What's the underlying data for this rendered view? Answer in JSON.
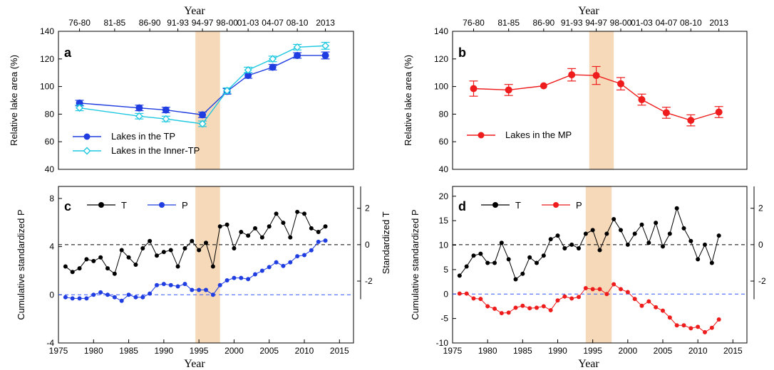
{
  "colors": {
    "tp": "#1f3de0",
    "inner_tp": "#1ec8e0",
    "mp": "#ee1c1c",
    "temp": "#000000",
    "precip_tp": "#1f3de0",
    "precip_mp": "#ee1c1c",
    "shade": "#f5d9b8",
    "zero_line_p": "#3355ff"
  },
  "top_axis_title": "Year",
  "bottom_axis_title": "Year",
  "period_labels": [
    "76-80",
    "81-85",
    "86-90",
    "91-93",
    "94-97",
    "98-00",
    "01-03",
    "04-07",
    "08-10",
    "2013"
  ],
  "chart_data": [
    {
      "panel": "a",
      "type": "line",
      "ylabel": "Relative lake area (%)",
      "xlabel": "Year",
      "ylim": [
        40,
        140
      ],
      "yticks": [
        "40",
        "60",
        "80",
        "100",
        "120",
        "140"
      ],
      "x_period_midpoints": [
        1978,
        1986.5,
        1990.3,
        1995.5,
        1999,
        2002,
        2005.5,
        2009,
        2013
      ],
      "shaded_range": [
        1994.5,
        1998
      ],
      "legend_position": "lower-left",
      "series": [
        {
          "name": "Lakes in the TP",
          "marker": "filled-circle",
          "color_key": "tp",
          "x": [
            1978,
            1986.5,
            1990.3,
            1995.5,
            1999,
            2002,
            2005.5,
            2009,
            2013
          ],
          "values": [
            88,
            84.5,
            83,
            79.5,
            96.5,
            108,
            114,
            122.5,
            122.5
          ],
          "err": [
            2,
            2,
            2,
            2,
            2,
            2,
            2,
            2,
            2.5
          ]
        },
        {
          "name": "Lakes in the Inner-TP",
          "marker": "open-diamond",
          "color_key": "inner_tp",
          "x": [
            1978,
            1986.5,
            1990.3,
            1995.5,
            1999,
            2002,
            2005.5,
            2009,
            2013
          ],
          "values": [
            84.5,
            78.5,
            76.5,
            73,
            97,
            112,
            120,
            128.5,
            129.5
          ],
          "err": [
            2,
            2,
            2,
            2,
            2,
            2,
            2,
            2,
            2.5
          ]
        }
      ]
    },
    {
      "panel": "b",
      "type": "line",
      "ylabel": "Relative lake area (%)",
      "xlabel": "Year",
      "ylim": [
        40,
        140
      ],
      "yticks": [
        "40",
        "60",
        "80",
        "100",
        "120",
        "140"
      ],
      "shaded_range": [
        1994.5,
        1998
      ],
      "legend_position": "lower-left",
      "series": [
        {
          "name": "Lakes in the MP",
          "marker": "filled-circle",
          "color_key": "mp",
          "x": [
            1978,
            1983,
            1988,
            1992,
            1995.5,
            1999,
            2002,
            2005.5,
            2009,
            2013
          ],
          "values": [
            98.5,
            97.5,
            100.5,
            108.5,
            108,
            102,
            90.5,
            81,
            75.5,
            81.5
          ],
          "err": [
            5.5,
            4,
            0,
            4.5,
            6.5,
            4.5,
            4,
            4,
            4,
            4
          ]
        }
      ]
    },
    {
      "panel": "c",
      "type": "line",
      "xlabel": "Year",
      "ylabel": "Cumulative standardized P",
      "y2label": "Standardized T",
      "xlim": [
        1975,
        2017
      ],
      "xticks": [
        "1975",
        "1980",
        "1985",
        "1990",
        "1995",
        "2000",
        "2005",
        "2010",
        "2015"
      ],
      "ylim": [
        -4,
        9
      ],
      "yticks": [
        "-4",
        "0",
        "4",
        "8"
      ],
      "y2lim": [
        -5.4,
        3.2
      ],
      "y2ticks": [
        "-2",
        "0",
        "2"
      ],
      "shaded_range": [
        1994.5,
        1998
      ],
      "legend_position": "top-left",
      "series": [
        {
          "name": "T",
          "axis": "right",
          "color_key": "temp",
          "x": [
            1976,
            1977,
            1978,
            1979,
            1980,
            1981,
            1982,
            1983,
            1984,
            1985,
            1986,
            1987,
            1988,
            1989,
            1990,
            1991,
            1992,
            1993,
            1994,
            1995,
            1996,
            1997,
            1998,
            1999,
            2000,
            2001,
            2002,
            2003,
            2004,
            2005,
            2006,
            2007,
            2008,
            2009,
            2010,
            2011,
            2012,
            2013
          ],
          "values": [
            -1.2,
            -1.5,
            -1.3,
            -0.8,
            -0.9,
            -0.7,
            -1.3,
            -1.6,
            -0.3,
            -0.7,
            -1.1,
            -0.2,
            0.2,
            -0.6,
            -0.4,
            -0.3,
            -1.2,
            -0.2,
            0.2,
            -0.3,
            0.1,
            -1.2,
            1.0,
            1.1,
            -0.2,
            0.7,
            0.5,
            0.9,
            0.4,
            1.0,
            1.7,
            1.2,
            0.4,
            1.8,
            1.7,
            0.9,
            0.7,
            1.0
          ]
        },
        {
          "name": "P",
          "axis": "left",
          "color_key": "precip_tp",
          "x": [
            1976,
            1977,
            1978,
            1979,
            1980,
            1981,
            1982,
            1983,
            1984,
            1985,
            1986,
            1987,
            1988,
            1989,
            1990,
            1991,
            1992,
            1993,
            1994,
            1995,
            1996,
            1997,
            1998,
            1999,
            2000,
            2001,
            2002,
            2003,
            2004,
            2005,
            2006,
            2007,
            2008,
            2009,
            2010,
            2011,
            2012,
            2013
          ],
          "values": [
            -0.2,
            -0.3,
            -0.3,
            -0.3,
            0,
            0.2,
            0,
            -0.2,
            -0.5,
            0,
            -0.2,
            -0.2,
            0.1,
            0.8,
            0.9,
            0.8,
            0.7,
            0.9,
            0.4,
            0.4,
            0.4,
            0,
            0.8,
            1.2,
            1.4,
            1.4,
            1.3,
            1.7,
            2,
            2.3,
            2.7,
            2.4,
            2.7,
            3.2,
            3.3,
            3.7,
            4.4,
            4.5
          ]
        }
      ]
    },
    {
      "panel": "d",
      "type": "line",
      "xlabel": "Year",
      "ylabel": "Cumulative standardized P",
      "y2label": "Standardized T",
      "xlim": [
        1975,
        2017
      ],
      "xticks": [
        "1975",
        "1980",
        "1985",
        "1990",
        "1995",
        "2000",
        "2005",
        "2010",
        "2015"
      ],
      "ylim": [
        -10,
        22
      ],
      "yticks": [
        "-10",
        "-5",
        "0",
        "5",
        "10",
        "15",
        "20"
      ],
      "y2lim": [
        -5.4,
        3.2
      ],
      "y2ticks": [
        "-2",
        "0",
        "2"
      ],
      "shaded_range": [
        1994,
        1997.7
      ],
      "legend_position": "top-left",
      "series": [
        {
          "name": "T",
          "axis": "right",
          "color_key": "temp",
          "x": [
            1976,
            1977,
            1978,
            1979,
            1980,
            1981,
            1982,
            1983,
            1984,
            1985,
            1986,
            1987,
            1988,
            1989,
            1990,
            1991,
            1992,
            1993,
            1994,
            1995,
            1996,
            1997,
            1998,
            1999,
            2000,
            2001,
            2002,
            2003,
            2004,
            2005,
            2006,
            2007,
            2008,
            2009,
            2010,
            2011,
            2012,
            2013
          ],
          "values": [
            -1.7,
            -1.2,
            -0.6,
            -0.5,
            -1.0,
            -1.0,
            0.1,
            -0.8,
            -1.9,
            -1.6,
            -0.7,
            -1.0,
            -0.6,
            0.3,
            0.5,
            -0.2,
            0,
            -0.2,
            0.6,
            0.8,
            -0.3,
            0.6,
            1.4,
            0.8,
            0,
            0.6,
            1.1,
            0.1,
            1.2,
            -0.1,
            0.6,
            2.0,
            0.9,
            0.2,
            -0.8,
            0,
            -1.0,
            0.5
          ]
        },
        {
          "name": "P",
          "axis": "left",
          "color_key": "precip_mp",
          "x": [
            1976,
            1977,
            1978,
            1979,
            1980,
            1981,
            1982,
            1983,
            1984,
            1985,
            1986,
            1987,
            1988,
            1989,
            1990,
            1991,
            1992,
            1993,
            1994,
            1995,
            1996,
            1997,
            1998,
            1999,
            2000,
            2001,
            2002,
            2003,
            2004,
            2005,
            2006,
            2007,
            2008,
            2009,
            2010,
            2011,
            2012,
            2013
          ],
          "values": [
            0.1,
            0.1,
            -0.9,
            -1.0,
            -2.5,
            -3.0,
            -3.9,
            -3.8,
            -2.8,
            -2.4,
            -2.9,
            -2.8,
            -2.5,
            -3.3,
            -1.3,
            -0.5,
            -0.9,
            -0.6,
            1.2,
            1.0,
            1.0,
            0,
            2.0,
            1.0,
            0.4,
            -1.0,
            -2.4,
            -1.5,
            -2.7,
            -3.4,
            -4.8,
            -6.4,
            -6.4,
            -7.0,
            -6.7,
            -7.8,
            -6.9,
            -5.2
          ]
        }
      ]
    }
  ]
}
